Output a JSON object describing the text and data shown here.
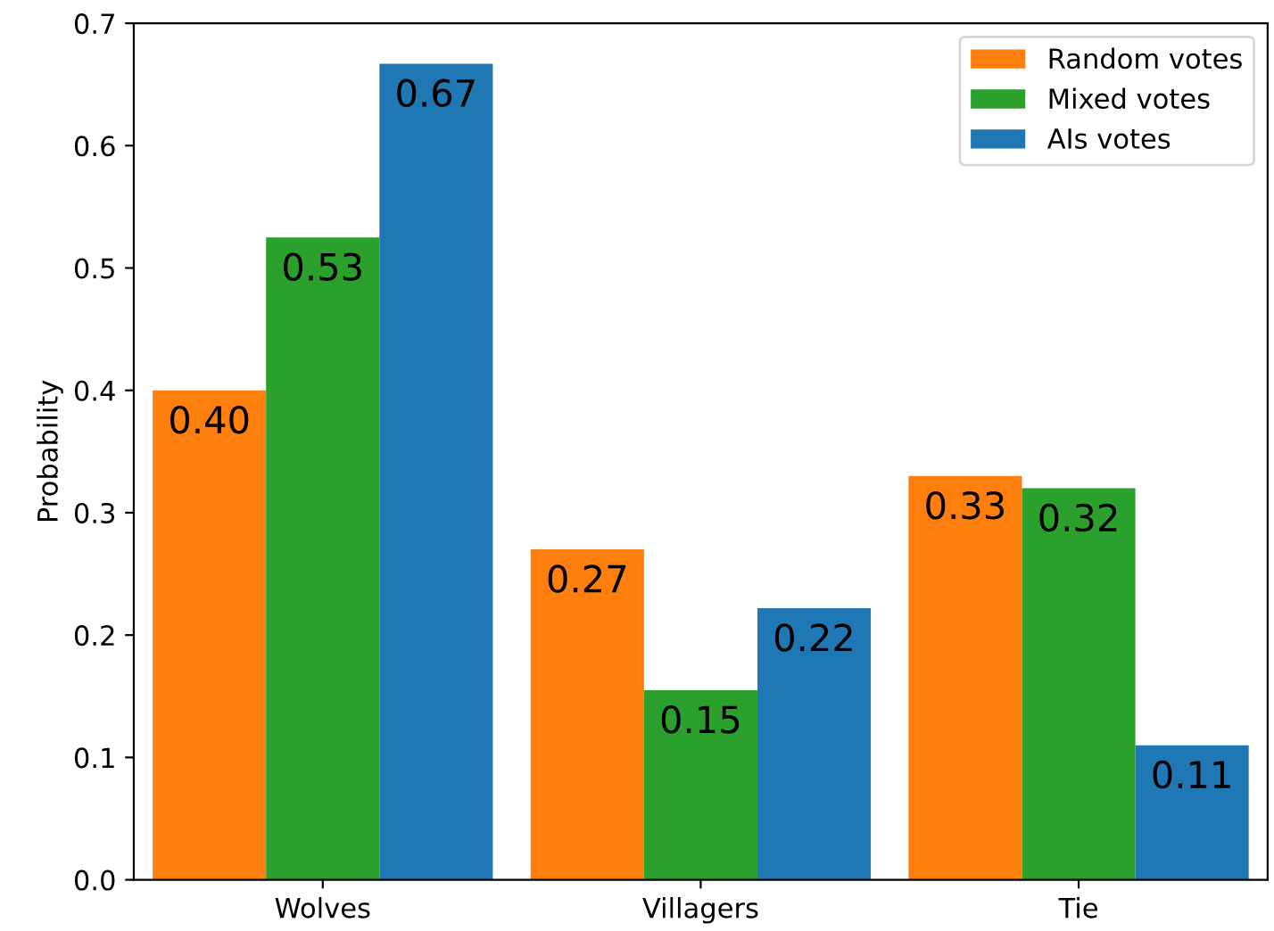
{
  "chart_data": {
    "type": "bar",
    "ylabel": "Probability",
    "categories": [
      "Wolves",
      "Villagers",
      "Tie"
    ],
    "series": [
      {
        "name": "Random votes",
        "color": "#ff7f0e",
        "values": [
          0.4,
          0.27,
          0.33
        ],
        "value_labels": [
          "0.40",
          "0.27",
          "0.33"
        ]
      },
      {
        "name": "Mixed votes",
        "color": "#2ca02c",
        "values": [
          0.525,
          0.155,
          0.32
        ],
        "value_labels": [
          "0.53",
          "0.15",
          "0.32"
        ]
      },
      {
        "name": "AIs votes",
        "color": "#1f77b4",
        "values": [
          0.667,
          0.222,
          0.11
        ],
        "value_labels": [
          "0.67",
          "0.22",
          "0.11"
        ]
      }
    ],
    "ylim": [
      0,
      0.7
    ],
    "yticks": [
      {
        "value": 0,
        "label": "0.0"
      },
      0.1,
      0.2,
      0.3,
      0.4,
      0.5,
      0.6,
      0.7
    ],
    "legend": "top right",
    "grid": false
  }
}
